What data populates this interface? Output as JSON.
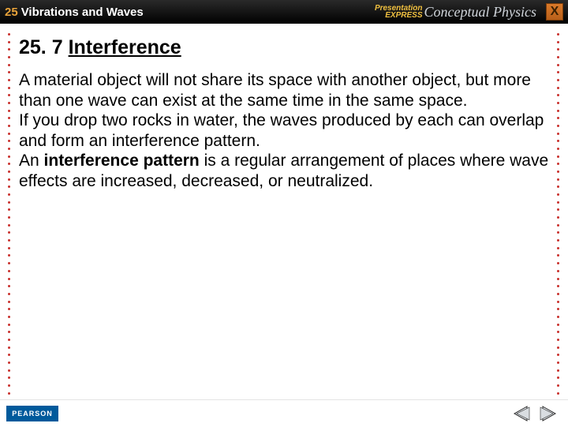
{
  "topbar": {
    "chapter_number": "25",
    "chapter_title": "Vibrations and Waves",
    "brand_small_line1": "Presentation",
    "brand_small_line2": "EXPRESS",
    "brand_main": "Conceptual Physics",
    "close_glyph": "X"
  },
  "content": {
    "heading_prefix": "25. 7 ",
    "heading_main": "Interference",
    "para1": "A material object will not share its space with another object, but more than one wave can exist at the same time in the same space.",
    "para2": "If you drop two rocks in water, the waves produced by each can overlap and form an interference pattern.",
    "para3_a": "An ",
    "para3_bold": "interference pattern",
    "para3_b": " is a regular arrangement of places where wave effects are increased, decreased, or neutralized."
  },
  "footer": {
    "pearson": "PEARSON"
  },
  "colors": {
    "accent_orange": "#e8a33a",
    "dot_red": "#c9302c",
    "pearson_blue": "#005a9c",
    "nav_fill": "#d9dde1",
    "nav_stroke": "#2a2a2a"
  }
}
